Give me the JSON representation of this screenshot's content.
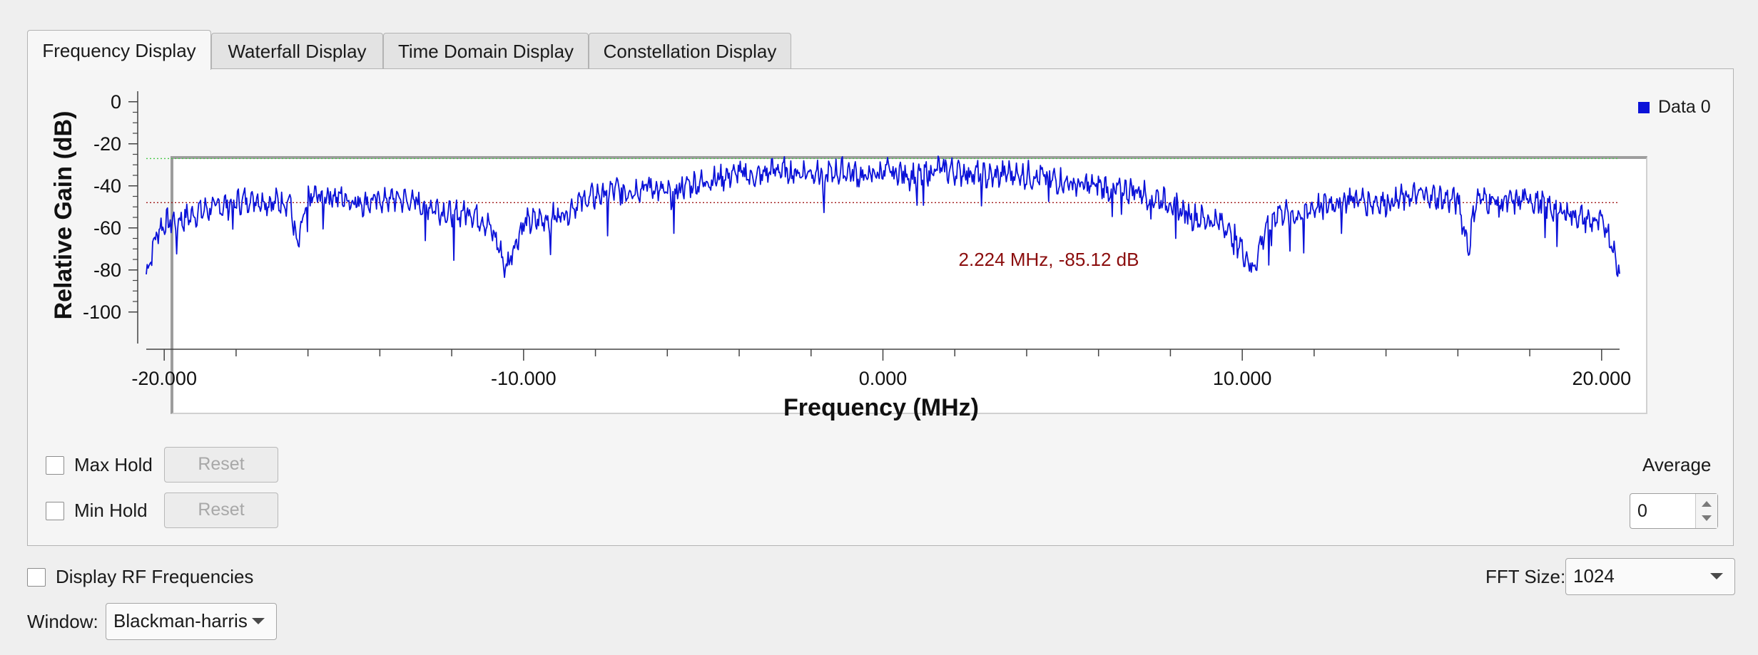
{
  "tabs": [
    {
      "label": "Frequency Display",
      "active": true
    },
    {
      "label": "Waterfall Display",
      "active": false
    },
    {
      "label": "Time Domain Display",
      "active": false
    },
    {
      "label": "Constellation Display",
      "active": false
    }
  ],
  "plot": {
    "legend_label": "Data 0",
    "marker_label": "2.224 MHz, -85.12 dB"
  },
  "chart_data": {
    "type": "line",
    "xlabel": "Frequency (MHz)",
    "ylabel": "Relative Gain (dB)",
    "xlim": [
      -20.5,
      20.5
    ],
    "ylim": [
      -115,
      5
    ],
    "x_ticks": [
      -20,
      -10,
      0,
      10,
      20
    ],
    "x_tick_labels": [
      "-20.000",
      "-10.000",
      "0.000",
      "10.000",
      "20.000"
    ],
    "y_ticks": [
      0,
      -20,
      -40,
      -60,
      -80,
      -100
    ],
    "y_tick_labels": [
      "0",
      "-20",
      "-40",
      "-60",
      "-80",
      "-100"
    ],
    "reference_lines": [
      {
        "value": -27,
        "color": "#46c846",
        "style": "dotted"
      },
      {
        "value": -48,
        "color": "#a01818",
        "style": "dotted"
      }
    ],
    "series": [
      {
        "name": "Data 0",
        "color": "#0b12d8",
        "x": [
          -20.5,
          -20.2,
          -20.0,
          -19.5,
          -19.0,
          -18.5,
          -18.0,
          -17.5,
          -17.0,
          -16.5,
          -16.3,
          -16.0,
          -15.5,
          -15.0,
          -14.5,
          -14.0,
          -13.5,
          -13.0,
          -12.5,
          -12.0,
          -11.5,
          -11.0,
          -10.7,
          -10.5,
          -10.3,
          -10.0,
          -9.5,
          -9.0,
          -8.5,
          -8.0,
          -7.5,
          -7.0,
          -6.5,
          -6.0,
          -5.5,
          -5.0,
          -4.5,
          -4.0,
          -3.5,
          -3.0,
          -2.5,
          -2.0,
          -1.5,
          -1.0,
          -0.5,
          0.0,
          0.5,
          1.0,
          1.5,
          2.0,
          2.5,
          3.0,
          3.5,
          4.0,
          4.5,
          5.0,
          5.5,
          6.0,
          6.5,
          7.0,
          7.5,
          8.0,
          8.5,
          9.0,
          9.5,
          10.0,
          10.3,
          10.5,
          10.7,
          11.0,
          11.5,
          12.0,
          12.5,
          13.0,
          13.5,
          14.0,
          14.5,
          15.0,
          15.5,
          16.0,
          16.3,
          16.5,
          17.0,
          17.5,
          18.0,
          18.5,
          19.0,
          19.5,
          20.0,
          20.2,
          20.5
        ],
        "y": [
          -82,
          -62,
          -58,
          -56,
          -52,
          -50,
          -48,
          -46,
          -48,
          -47,
          -70,
          -46,
          -44,
          -46,
          -48,
          -47,
          -46,
          -48,
          -50,
          -54,
          -52,
          -58,
          -68,
          -80,
          -70,
          -58,
          -56,
          -54,
          -48,
          -45,
          -42,
          -42,
          -40,
          -44,
          -40,
          -38,
          -36,
          -34,
          -36,
          -32,
          -34,
          -33,
          -34,
          -33,
          -36,
          -33,
          -34,
          -36,
          -32,
          -33,
          -34,
          -36,
          -34,
          -35,
          -36,
          -38,
          -40,
          -40,
          -42,
          -42,
          -45,
          -48,
          -54,
          -56,
          -58,
          -70,
          -80,
          -68,
          -58,
          -52,
          -54,
          -50,
          -48,
          -46,
          -47,
          -48,
          -46,
          -44,
          -46,
          -47,
          -70,
          -46,
          -47,
          -48,
          -46,
          -50,
          -52,
          -56,
          -58,
          -62,
          -82
        ]
      }
    ]
  },
  "controls": {
    "max_hold_label": "Max Hold",
    "min_hold_label": "Min Hold",
    "reset_label": "Reset",
    "average_label": "Average",
    "average_value": "0",
    "display_rf_label": "Display RF Frequencies",
    "fft_size_label": "FFT Size:",
    "fft_size_value": "1024",
    "window_label": "Window:",
    "window_value": "Blackman-harris"
  }
}
